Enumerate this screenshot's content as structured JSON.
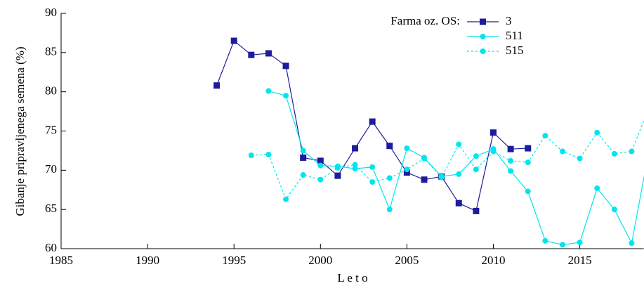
{
  "chart_data": {
    "type": "line",
    "ylabel": "Gibanje pripravljenega semena (%)",
    "xlabel": "L e t o",
    "legend_title": "Farma oz. OS:",
    "legend": "upper right",
    "grid": false,
    "x": [
      1994,
      1995,
      1996,
      1997,
      1998,
      1999,
      2000,
      2001,
      2002,
      2003,
      2004,
      2005,
      2006,
      2007,
      2008,
      2009,
      2010,
      2011,
      2012,
      2013,
      2014,
      2015,
      2016,
      2017,
      2018,
      2019
    ],
    "series": [
      {
        "name": "3",
        "color": "#1c1c9c",
        "marker": "square",
        "dash": false,
        "values": [
          80.8,
          86.5,
          84.7,
          84.9,
          83.3,
          71.6,
          71.2,
          69.3,
          72.8,
          76.2,
          73.1,
          69.7,
          68.8,
          69.2,
          65.8,
          64.8,
          74.8,
          72.7,
          72.8,
          null,
          null,
          null,
          null,
          null,
          null,
          null
        ]
      },
      {
        "name": "511",
        "color": "#00e5ee",
        "marker": "circle",
        "dash": false,
        "values": [
          null,
          null,
          null,
          80.1,
          79.5,
          72.5,
          70.6,
          70.5,
          70.2,
          70.4,
          65.0,
          72.8,
          71.6,
          69.2,
          69.5,
          71.8,
          72.7,
          69.9,
          67.3,
          61.0,
          60.5,
          60.8,
          67.7,
          65.0,
          60.7,
          72.5
        ]
      },
      {
        "name": "515",
        "color": "#00e5ee",
        "marker": "circle",
        "dash": true,
        "values": [
          null,
          null,
          71.9,
          72.0,
          66.3,
          69.4,
          68.8,
          70.3,
          70.7,
          68.5,
          69.0,
          70.1,
          71.5,
          69.1,
          73.3,
          70.1,
          72.4,
          71.2,
          71.0,
          74.4,
          72.4,
          71.5,
          74.8,
          72.1,
          72.4,
          78.0
        ]
      }
    ],
    "xlim": [
      1985,
      2018.7
    ],
    "xticks": [
      1985,
      1990,
      1995,
      2000,
      2005,
      2010,
      2015
    ],
    "ylim": [
      60,
      90
    ],
    "yticks": [
      60,
      65,
      70,
      75,
      80,
      85,
      90
    ]
  }
}
